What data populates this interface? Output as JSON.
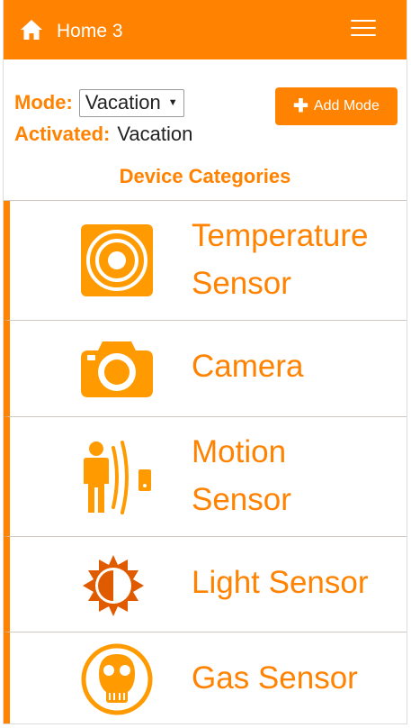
{
  "navbar": {
    "title": "Home 3",
    "home_icon": "home-icon",
    "menu_icon": "hamburger-menu-icon",
    "background": "#ff8200"
  },
  "mode": {
    "label": "Mode:",
    "selected": "Vacation"
  },
  "activated": {
    "label": "Activated:",
    "value": "Vacation"
  },
  "add_mode_button": {
    "label": "Add Mode",
    "icon": "plus-icon"
  },
  "section_title": "Device Categories",
  "categories": [
    {
      "label": "Temperature Sensor",
      "icon": "temperature-sensor-icon"
    },
    {
      "label": "Camera",
      "icon": "camera-icon"
    },
    {
      "label": "Motion Sensor",
      "icon": "motion-sensor-icon"
    },
    {
      "label": "Light Sensor",
      "icon": "light-sensor-icon"
    },
    {
      "label": "Gas Sensor",
      "icon": "gas-mask-icon"
    }
  ],
  "colors": {
    "accent": "#ff8200",
    "text": "#222222",
    "divider": "#cfc8c0"
  }
}
